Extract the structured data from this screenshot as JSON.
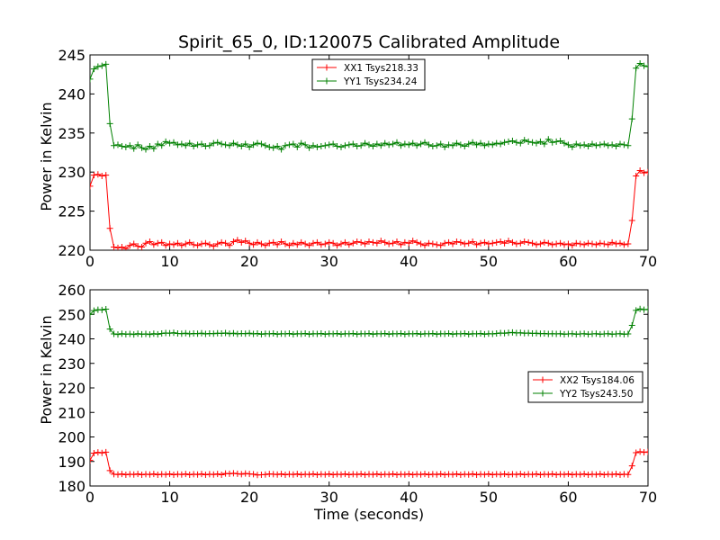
{
  "chart_data": [
    {
      "type": "line",
      "title": "Spirit_65_0, ID:120075 Calibrated Amplitude",
      "xlabel": "",
      "ylabel": "Power in Kelvin",
      "xlim": [
        0,
        70
      ],
      "ylim": [
        220,
        245
      ],
      "xticks": [
        "0",
        "10",
        "20",
        "30",
        "40",
        "50",
        "60",
        "70"
      ],
      "yticks": [
        "220",
        "225",
        "230",
        "235",
        "240",
        "245"
      ],
      "legend_position": "upper-center",
      "x_step": 0.5,
      "series": [
        {
          "name": "XX1 Tsys218.33",
          "color": "#ff0000",
          "values": [
            228.2,
            229.6,
            229.7,
            229.5,
            229.6,
            222.8,
            220.4,
            220.3,
            220.4,
            220.2,
            220.6,
            220.8,
            220.5,
            220.4,
            220.9,
            221.1,
            220.7,
            220.9,
            221.0,
            220.6,
            220.8,
            220.7,
            220.9,
            220.6,
            220.8,
            221.0,
            220.7,
            220.6,
            220.8,
            220.9,
            220.7,
            220.5,
            220.8,
            221.0,
            220.9,
            220.6,
            221.1,
            221.3,
            221.0,
            221.2,
            220.9,
            220.7,
            221.0,
            220.8,
            220.6,
            220.9,
            221.0,
            220.7,
            221.1,
            220.8,
            220.6,
            220.9,
            220.7,
            221.0,
            220.8,
            220.6,
            220.9,
            221.0,
            220.7,
            220.8,
            221.0,
            220.9,
            220.6,
            220.8,
            221.0,
            220.7,
            220.9,
            221.1,
            221.0,
            220.8,
            221.1,
            221.0,
            220.9,
            221.2,
            221.0,
            220.8,
            220.9,
            221.1,
            220.7,
            221.0,
            220.9,
            221.2,
            221.0,
            220.8,
            220.6,
            220.9,
            220.8,
            220.7,
            220.6,
            220.9,
            221.0,
            220.8,
            221.1,
            221.0,
            220.8,
            220.9,
            221.1,
            220.7,
            220.9,
            221.0,
            220.8,
            220.9,
            221.0,
            221.1,
            220.9,
            221.2,
            221.0,
            220.8,
            220.9,
            221.1,
            221.0,
            220.9,
            220.7,
            220.8,
            221.0,
            220.9,
            220.7,
            220.8,
            220.9,
            220.7,
            220.8,
            220.6,
            220.9,
            220.8,
            220.7,
            220.9,
            220.8,
            220.7,
            220.9,
            220.8,
            220.7,
            221.0,
            220.8,
            220.9,
            220.7,
            220.8,
            223.8,
            229.5,
            230.2,
            229.9,
            230.0
          ]
        },
        {
          "name": "YY1 Tsys234.24",
          "color": "#008000",
          "values": [
            241.9,
            243.2,
            243.5,
            243.6,
            243.8,
            236.2,
            233.4,
            233.5,
            233.3,
            233.2,
            233.4,
            233.0,
            233.5,
            233.1,
            232.9,
            233.3,
            233.0,
            233.6,
            233.4,
            233.9,
            233.7,
            233.8,
            233.5,
            233.6,
            233.4,
            233.7,
            233.3,
            233.5,
            233.6,
            233.3,
            233.4,
            233.7,
            233.8,
            233.6,
            233.5,
            233.4,
            233.7,
            233.5,
            233.3,
            233.6,
            233.2,
            233.5,
            233.7,
            233.6,
            233.4,
            233.2,
            233.1,
            233.3,
            232.9,
            233.4,
            233.5,
            233.6,
            233.2,
            233.7,
            233.5,
            233.1,
            233.4,
            233.2,
            233.3,
            233.4,
            233.5,
            233.6,
            233.3,
            233.2,
            233.4,
            233.5,
            233.6,
            233.3,
            233.4,
            233.7,
            233.5,
            233.3,
            233.6,
            233.4,
            233.7,
            233.5,
            233.6,
            233.8,
            233.4,
            233.6,
            233.5,
            233.7,
            233.4,
            233.6,
            233.8,
            233.5,
            233.3,
            233.4,
            233.6,
            233.2,
            233.5,
            233.4,
            233.7,
            233.5,
            233.3,
            233.6,
            233.8,
            233.5,
            233.7,
            233.4,
            233.6,
            233.5,
            233.7,
            233.6,
            233.8,
            233.9,
            234.0,
            233.8,
            233.7,
            234.1,
            233.9,
            233.8,
            233.7,
            233.9,
            233.6,
            234.2,
            233.8,
            233.9,
            234.0,
            233.7,
            233.5,
            233.2,
            233.6,
            233.4,
            233.5,
            233.3,
            233.6,
            233.4,
            233.5,
            233.6,
            233.4,
            233.5,
            233.3,
            233.6,
            233.5,
            233.4,
            236.8,
            243.3,
            243.9,
            243.6,
            243.5
          ]
        }
      ]
    },
    {
      "type": "line",
      "title": "",
      "xlabel": "Time (seconds)",
      "ylabel": "Power in Kelvin",
      "xlim": [
        0,
        70
      ],
      "ylim": [
        180,
        260
      ],
      "xticks": [
        "0",
        "10",
        "20",
        "30",
        "40",
        "50",
        "60",
        "70"
      ],
      "yticks": [
        "180",
        "190",
        "200",
        "210",
        "220",
        "230",
        "240",
        "250",
        "260"
      ],
      "legend_position": "center-right",
      "x_step": 0.5,
      "series": [
        {
          "name": "XX2 Tsys184.06",
          "color": "#ff0000",
          "values": [
            190.5,
            193.4,
            193.7,
            193.5,
            193.8,
            186.3,
            184.8,
            184.7,
            184.9,
            184.6,
            184.8,
            184.7,
            184.9,
            184.6,
            184.8,
            184.7,
            184.9,
            184.6,
            184.8,
            184.7,
            184.9,
            184.6,
            184.8,
            184.7,
            184.9,
            184.6,
            184.8,
            184.7,
            184.9,
            184.6,
            184.8,
            184.7,
            184.9,
            184.6,
            185.1,
            185.0,
            185.2,
            185.0,
            184.8,
            185.1,
            184.9,
            184.8,
            184.5,
            184.6,
            184.7,
            184.9,
            184.8,
            184.7,
            184.9,
            184.6,
            184.8,
            184.7,
            184.9,
            184.6,
            184.8,
            184.7,
            184.9,
            184.6,
            184.8,
            184.7,
            184.9,
            184.6,
            184.8,
            184.7,
            184.9,
            184.6,
            184.8,
            184.7,
            184.9,
            184.6,
            184.8,
            184.7,
            184.9,
            184.6,
            184.8,
            184.7,
            184.9,
            184.6,
            184.8,
            184.7,
            184.9,
            184.6,
            184.8,
            184.7,
            184.9,
            184.6,
            184.8,
            184.7,
            184.9,
            184.6,
            184.8,
            184.7,
            184.9,
            184.6,
            184.8,
            184.7,
            184.9,
            184.6,
            184.8,
            184.7,
            184.9,
            184.6,
            184.8,
            184.7,
            184.9,
            184.6,
            184.8,
            184.7,
            184.9,
            184.6,
            184.8,
            184.7,
            184.9,
            184.6,
            184.8,
            184.7,
            184.9,
            184.6,
            184.8,
            184.7,
            184.9,
            184.6,
            184.8,
            184.7,
            184.9,
            184.6,
            184.8,
            184.7,
            184.9,
            184.6,
            184.8,
            184.7,
            184.9,
            184.6,
            184.8,
            184.7,
            188.2,
            193.6,
            194.0,
            193.7,
            193.9
          ]
        },
        {
          "name": "YY2 Tsys243.50",
          "color": "#008000",
          "values": [
            250.0,
            251.5,
            251.9,
            251.8,
            252.1,
            244.0,
            242.0,
            241.8,
            242.1,
            241.9,
            242.0,
            241.8,
            242.1,
            241.9,
            242.0,
            241.8,
            242.1,
            241.9,
            242.2,
            242.4,
            242.3,
            242.5,
            242.2,
            242.1,
            242.3,
            242.0,
            242.2,
            242.1,
            242.3,
            242.0,
            242.2,
            242.1,
            242.3,
            242.2,
            242.4,
            242.1,
            242.3,
            242.0,
            242.2,
            242.1,
            242.3,
            242.0,
            242.2,
            241.9,
            242.1,
            242.0,
            242.2,
            241.9,
            242.1,
            242.0,
            242.2,
            241.9,
            242.1,
            242.0,
            242.2,
            241.9,
            242.1,
            242.0,
            242.2,
            241.9,
            242.1,
            242.0,
            242.2,
            241.9,
            242.1,
            242.0,
            242.2,
            241.9,
            242.1,
            242.0,
            242.2,
            241.9,
            242.1,
            242.0,
            242.2,
            241.9,
            242.1,
            242.0,
            242.2,
            241.9,
            242.1,
            242.0,
            242.2,
            241.9,
            242.1,
            242.0,
            242.2,
            241.9,
            242.1,
            242.0,
            242.2,
            241.9,
            242.1,
            242.0,
            242.2,
            241.9,
            242.1,
            242.0,
            242.2,
            241.9,
            242.1,
            242.0,
            242.2,
            242.4,
            242.3,
            242.5,
            242.6,
            242.4,
            242.5,
            242.3,
            242.4,
            242.2,
            242.3,
            242.1,
            242.2,
            242.0,
            242.1,
            242.0,
            242.1,
            241.9,
            242.0,
            242.1,
            241.9,
            242.0,
            242.1,
            241.9,
            242.0,
            242.1,
            241.9,
            242.0,
            242.1,
            241.9,
            242.0,
            242.1,
            241.9,
            242.0,
            245.5,
            251.6,
            252.2,
            251.9,
            252.0
          ]
        }
      ]
    }
  ]
}
